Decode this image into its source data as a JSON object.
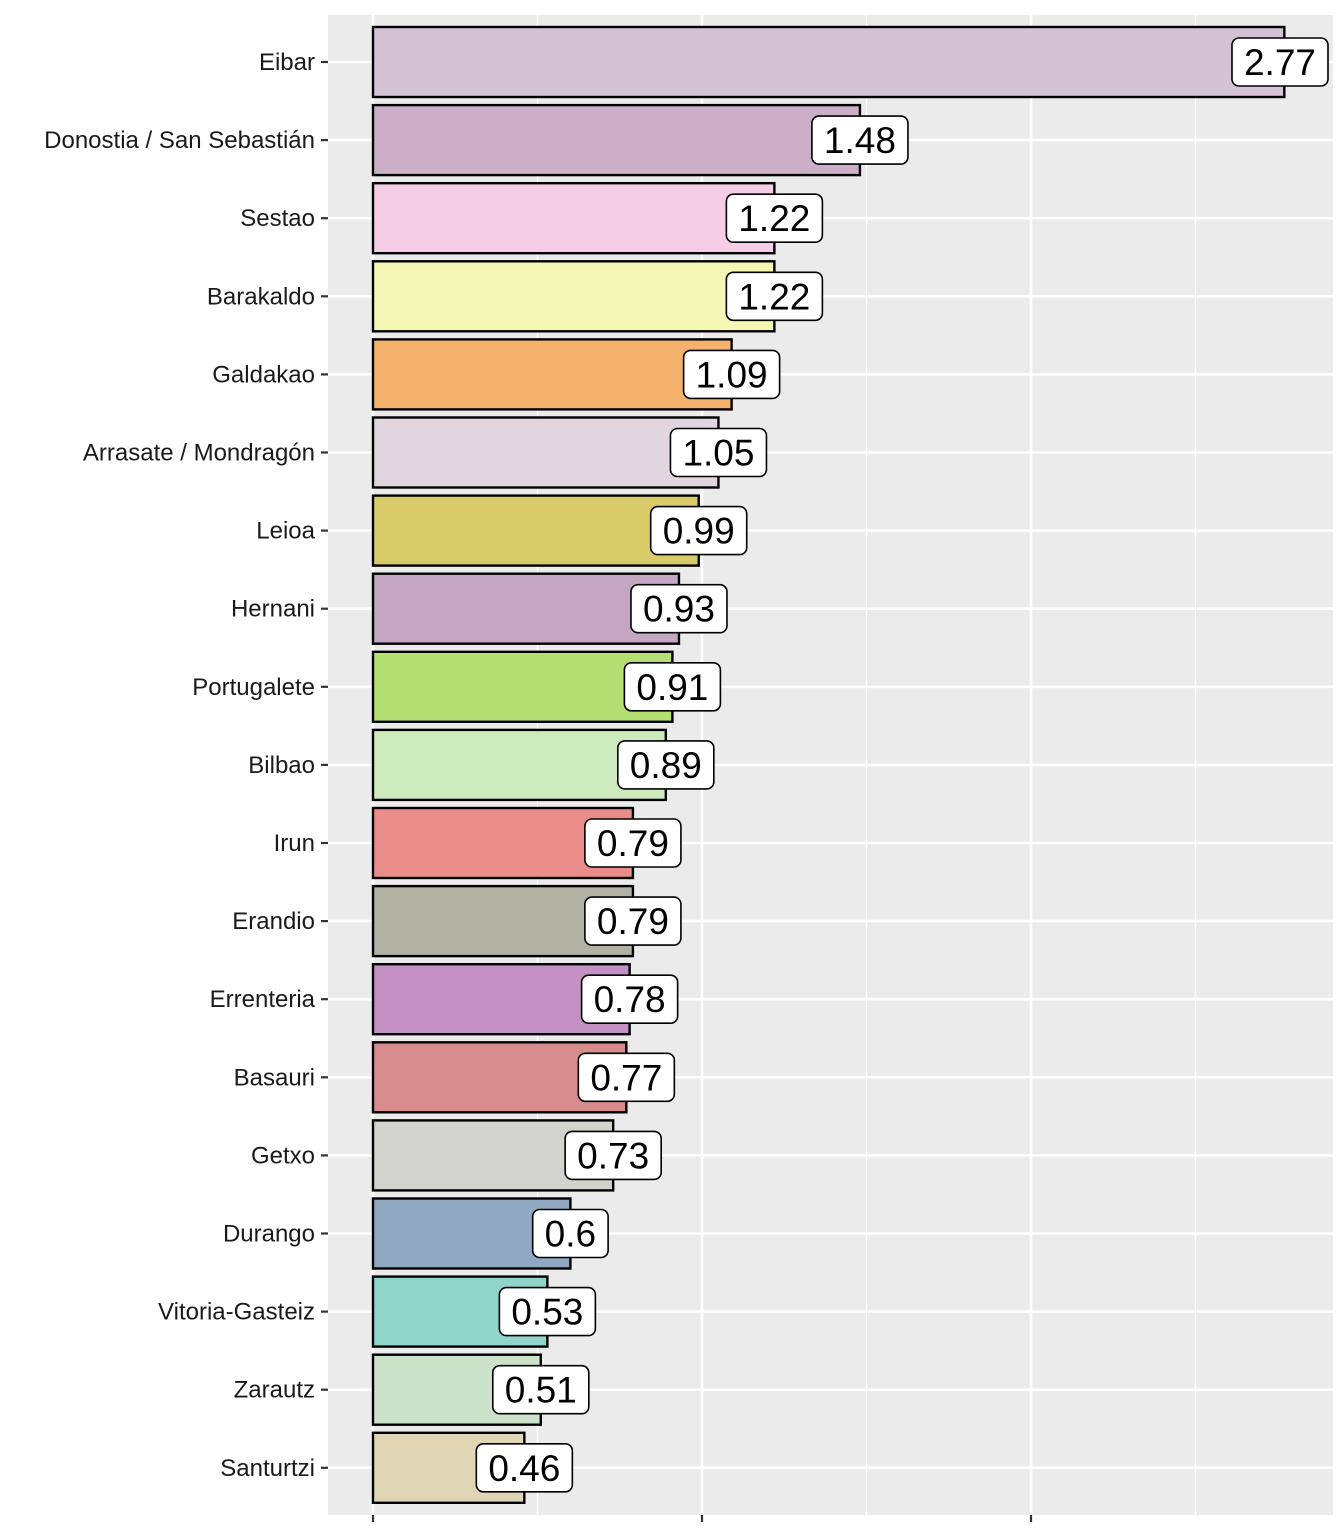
{
  "chart_data": {
    "type": "bar",
    "orientation": "horizontal",
    "title": "",
    "xlabel": "",
    "ylabel": "",
    "xlim": [
      0,
      2.9
    ],
    "grid": true,
    "legend": "none",
    "categories": [
      "Eibar",
      "Donostia / San Sebastián",
      "Sestao",
      "Barakaldo",
      "Galdakao",
      "Arrasate / Mondragón",
      "Leioa",
      "Hernani",
      "Portugalete",
      "Bilbao",
      "Irun",
      "Erandio",
      "Errenteria",
      "Basauri",
      "Getxo",
      "Durango",
      "Vitoria-Gasteiz",
      "Zarautz",
      "Santurtzi"
    ],
    "values": [
      2.77,
      1.48,
      1.22,
      1.22,
      1.09,
      1.05,
      0.99,
      0.93,
      0.91,
      0.89,
      0.79,
      0.79,
      0.78,
      0.77,
      0.73,
      0.6,
      0.53,
      0.51,
      0.46
    ],
    "value_labels": [
      "2.77",
      "1.48",
      "1.22",
      "1.22",
      "1.09",
      "1.05",
      "0.99",
      "0.93",
      "0.91",
      "0.89",
      "0.79",
      "0.79",
      "0.78",
      "0.77",
      "0.73",
      "0.6",
      "0.53",
      "0.51",
      "0.46"
    ],
    "colors": [
      "#D3C3D4",
      "#CBAFC7",
      "#F5CDE5",
      "#F5F7B4",
      "#F5B26D",
      "#E2D6DE",
      "#D8CB69",
      "#C4A8C3",
      "#B6DF73",
      "#CDEBBC",
      "#EA8D8A",
      "#B2B2A4",
      "#C290C3",
      "#D78D8D",
      "#D3D3CE",
      "#91A8C3",
      "#90D5CA",
      "#CDE2CB",
      "#E0D5B4"
    ],
    "panel_background": "#EBEBEB",
    "grid_color": "#FFFFFF",
    "bar_outline": "#000000"
  }
}
